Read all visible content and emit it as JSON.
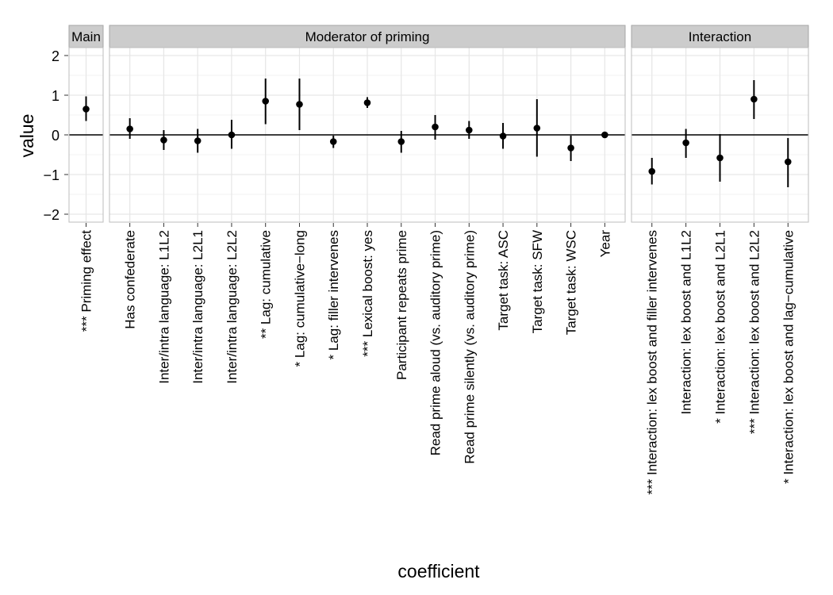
{
  "chart_data": {
    "type": "scatter",
    "subtype": "point-range (estimate with interval), faceted",
    "xlabel": "coefficient",
    "ylabel": "value",
    "ylim": [
      -2.2,
      2.2
    ],
    "yticks": [
      -2,
      -1,
      0,
      1,
      2
    ],
    "ytick_labels": [
      "−2",
      "−1",
      "0",
      "1",
      "2"
    ],
    "reference_line_y": 0,
    "grid": true,
    "colors": {
      "panel_background": "#ffffff",
      "panel_border": "#bdbdbd",
      "grid_major": "#e6e6e6",
      "grid_minor": "#f3f3f3",
      "strip_background": "#cccccc",
      "strip_border": "#a6a6a6",
      "point": "#000000",
      "interval": "#000000",
      "zero_line": "#000000"
    },
    "facets": [
      {
        "label": "Main",
        "points": [
          {
            "name": "*** Priming effect",
            "value": 0.65,
            "low": 0.35,
            "high": 0.97
          }
        ]
      },
      {
        "label": "Moderator of priming",
        "points": [
          {
            "name": "Has confederate",
            "value": 0.15,
            "low": -0.1,
            "high": 0.42
          },
          {
            "name": "Inter/intra language: L1L2",
            "value": -0.13,
            "low": -0.38,
            "high": 0.12
          },
          {
            "name": "Inter/intra language: L2L1",
            "value": -0.15,
            "low": -0.45,
            "high": 0.15
          },
          {
            "name": "Inter/intra language: L2L2",
            "value": 0.0,
            "low": -0.35,
            "high": 0.38
          },
          {
            "name": "** Lag: cumulative",
            "value": 0.85,
            "low": 0.27,
            "high": 1.42
          },
          {
            "name": "* Lag: cumulative−long",
            "value": 0.77,
            "low": 0.12,
            "high": 1.42
          },
          {
            "name": "* Lag: filler intervenes",
            "value": -0.17,
            "low": -0.33,
            "high": -0.02
          },
          {
            "name": "*** Lexical boost: yes",
            "value": 0.81,
            "low": 0.68,
            "high": 0.95
          },
          {
            "name": "Participant repeats prime",
            "value": -0.17,
            "low": -0.45,
            "high": 0.1
          },
          {
            "name": "Read prime aloud (vs. auditory prime)",
            "value": 0.2,
            "low": -0.12,
            "high": 0.5
          },
          {
            "name": "Read prime silently (vs. auditory prime)",
            "value": 0.12,
            "low": -0.1,
            "high": 0.35
          },
          {
            "name": "Target task: ASC",
            "value": -0.03,
            "low": -0.35,
            "high": 0.3
          },
          {
            "name": "Target task: SFW",
            "value": 0.17,
            "low": -0.55,
            "high": 0.9
          },
          {
            "name": "Target task: WSC",
            "value": -0.33,
            "low": -0.66,
            "high": -0.02
          },
          {
            "name": "Year",
            "value": 0.0,
            "low": -0.02,
            "high": 0.02
          }
        ]
      },
      {
        "label": "Interaction",
        "points": [
          {
            "name": "*** Interaction: lex boost and filler intervenes",
            "value": -0.92,
            "low": -1.25,
            "high": -0.58
          },
          {
            "name": "Interaction: lex boost and L1L2",
            "value": -0.2,
            "low": -0.58,
            "high": 0.15
          },
          {
            "name": "* Interaction: lex boost and L2L1",
            "value": -0.58,
            "low": -1.18,
            "high": 0.02
          },
          {
            "name": "*** Interaction: lex boost and L2L2",
            "value": 0.9,
            "low": 0.4,
            "high": 1.38
          },
          {
            "name": "* Interaction: lex boost and lag−cumulative",
            "value": -0.68,
            "low": -1.32,
            "high": -0.08
          }
        ]
      }
    ]
  }
}
